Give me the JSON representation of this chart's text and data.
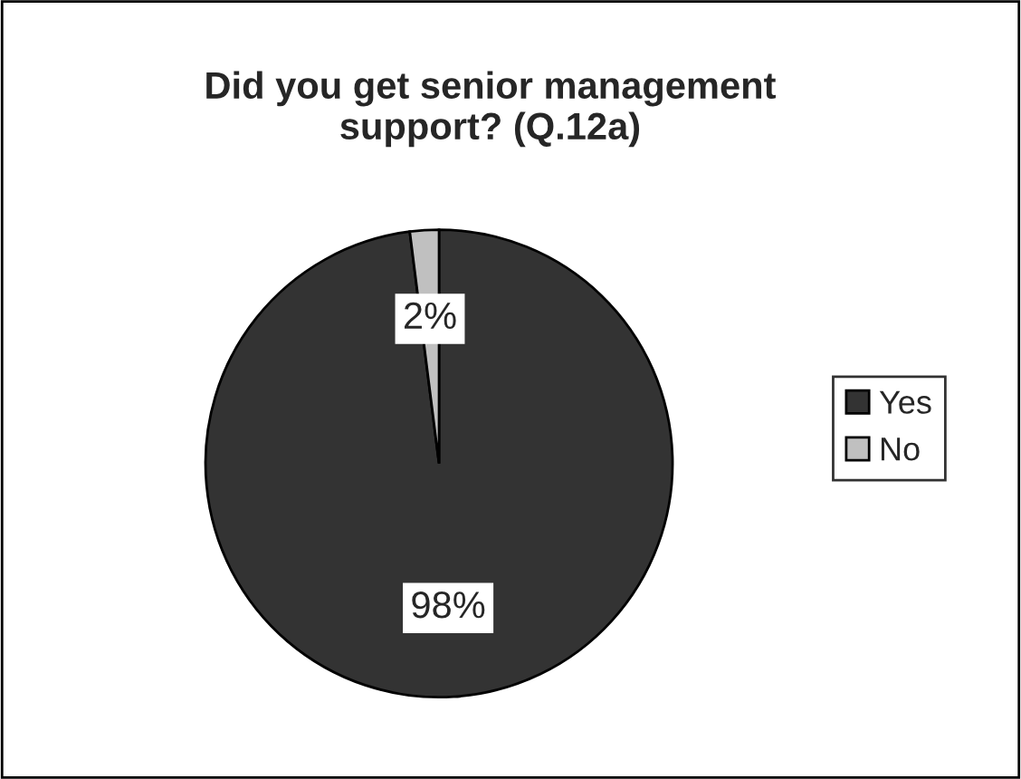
{
  "chart_data": {
    "type": "pie",
    "title": "Did you get senior management\nsupport? (Q.12a)",
    "categories": [
      "Yes",
      "No"
    ],
    "values": [
      98,
      2
    ],
    "colors": [
      "#333333",
      "#c0c0c0"
    ],
    "value_labels": [
      "98%",
      "2%"
    ],
    "legend": "right"
  }
}
